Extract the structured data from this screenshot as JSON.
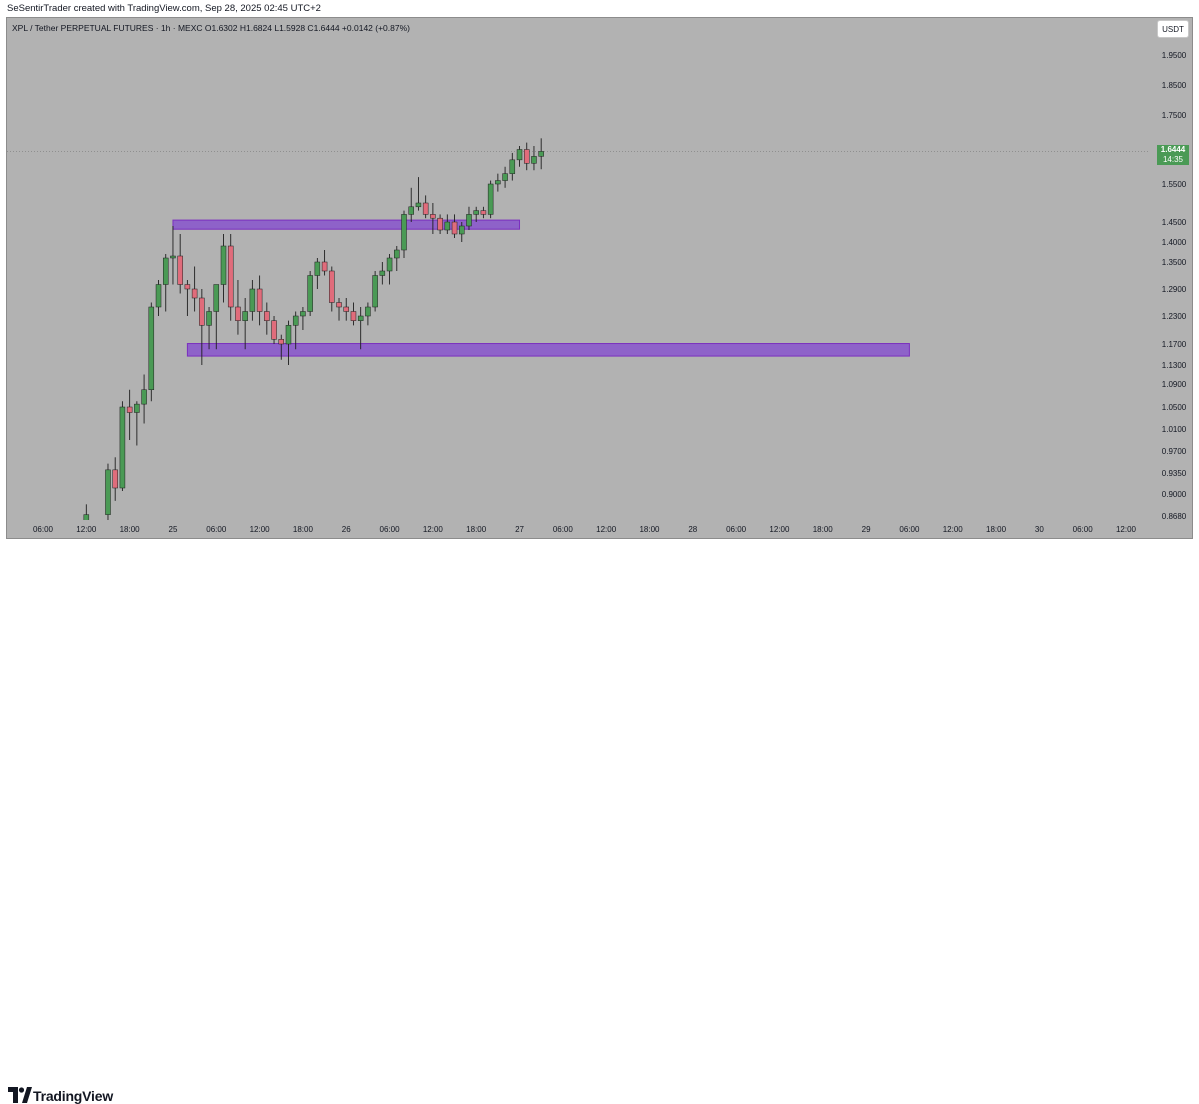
{
  "header": {
    "credit": "SeSentirTrader created with TradingView.com, Sep 28, 2025 02:45 UTC+2",
    "legend": "XPL / Tether PERPETUAL FUTURES · 1h · MEXC  O1.6302  H1.6824  L1.5928  C1.6444  +0.0142 (+0.87%)",
    "currency": "USDT"
  },
  "last_price": {
    "price": "1.6444",
    "countdown": "14:35"
  },
  "brand": {
    "name": "TradingView"
  },
  "colors": {
    "up": "#4a9a55",
    "down": "#e06c7b",
    "zone_fill": "#8e62c9",
    "zone_border": "#7b2fbf",
    "background": "#b2b2b2"
  },
  "chart_data": {
    "type": "candlestick",
    "title": "XPL / Tether PERPETUAL FUTURES · 1h · MEXC",
    "ylim": [
      0.868,
      1.99
    ],
    "y_ticks": [
      "1.9500",
      "1.8500",
      "1.7500",
      "1.5500",
      "1.4500",
      "1.4000",
      "1.3500",
      "1.2900",
      "1.2300",
      "1.1700",
      "1.1300",
      "1.0900",
      "1.0500",
      "1.0100",
      "0.9700",
      "0.9350",
      "0.9000",
      "0.8680"
    ],
    "x_ticks": [
      "06:00",
      "12:00",
      "18:00",
      "25",
      "06:00",
      "12:00",
      "18:00",
      "26",
      "06:00",
      "12:00",
      "18:00",
      "27",
      "06:00",
      "12:00",
      "18:00",
      "28",
      "06:00",
      "12:00",
      "18:00",
      "29",
      "06:00",
      "12:00",
      "18:00",
      "30",
      "06:00",
      "12:00"
    ],
    "candles": [
      {
        "time": "Sep 25 12:00",
        "o": 0.83,
        "h": 0.885,
        "l": 0.83,
        "c": 0.87
      },
      {
        "time": "Sep 25 15:00",
        "o": 0.87,
        "h": 0.95,
        "l": 0.86,
        "c": 0.94
      },
      {
        "time": "Sep 25 16:00",
        "o": 0.94,
        "h": 0.96,
        "l": 0.89,
        "c": 0.91
      },
      {
        "time": "Sep 25 17:00",
        "o": 0.91,
        "h": 1.06,
        "l": 0.905,
        "c": 1.05
      },
      {
        "time": "Sep 25 18:00",
        "o": 1.05,
        "h": 1.08,
        "l": 0.99,
        "c": 1.04
      },
      {
        "time": "Sep 25 19:00",
        "o": 1.04,
        "h": 1.06,
        "l": 0.98,
        "c": 1.055
      },
      {
        "time": "Sep 25 20:00",
        "o": 1.055,
        "h": 1.11,
        "l": 1.02,
        "c": 1.08
      },
      {
        "time": "Sep 25 21:00",
        "o": 1.08,
        "h": 1.26,
        "l": 1.06,
        "c": 1.25
      },
      {
        "time": "Sep 25 22:00",
        "o": 1.25,
        "h": 1.31,
        "l": 1.23,
        "c": 1.3
      },
      {
        "time": "Sep 25 23:00",
        "o": 1.3,
        "h": 1.37,
        "l": 1.24,
        "c": 1.36
      },
      {
        "time": "Sep 26 00:00",
        "o": 1.36,
        "h": 1.44,
        "l": 1.3,
        "c": 1.365
      },
      {
        "time": "Sep 26 01:00",
        "o": 1.365,
        "h": 1.42,
        "l": 1.28,
        "c": 1.3
      },
      {
        "time": "Sep 26 02:00",
        "o": 1.3,
        "h": 1.31,
        "l": 1.23,
        "c": 1.29
      },
      {
        "time": "Sep 26 03:00",
        "o": 1.29,
        "h": 1.34,
        "l": 1.24,
        "c": 1.27
      },
      {
        "time": "Sep 26 04:00",
        "o": 1.27,
        "h": 1.29,
        "l": 1.13,
        "c": 1.21
      },
      {
        "time": "Sep 26 05:00",
        "o": 1.21,
        "h": 1.25,
        "l": 1.16,
        "c": 1.24
      },
      {
        "time": "Sep 26 06:00",
        "o": 1.24,
        "h": 1.3,
        "l": 1.16,
        "c": 1.3
      },
      {
        "time": "Sep 26 07:00",
        "o": 1.3,
        "h": 1.42,
        "l": 1.26,
        "c": 1.39
      },
      {
        "time": "Sep 26 08:00",
        "o": 1.39,
        "h": 1.42,
        "l": 1.22,
        "c": 1.25
      },
      {
        "time": "Sep 26 09:00",
        "o": 1.25,
        "h": 1.31,
        "l": 1.19,
        "c": 1.22
      },
      {
        "time": "Sep 26 10:00",
        "o": 1.22,
        "h": 1.27,
        "l": 1.16,
        "c": 1.24
      },
      {
        "time": "Sep 26 11:00",
        "o": 1.24,
        "h": 1.31,
        "l": 1.22,
        "c": 1.29
      },
      {
        "time": "Sep 26 12:00",
        "o": 1.29,
        "h": 1.32,
        "l": 1.21,
        "c": 1.24
      },
      {
        "time": "Sep 26 13:00",
        "o": 1.24,
        "h": 1.26,
        "l": 1.19,
        "c": 1.22
      },
      {
        "time": "Sep 26 14:00",
        "o": 1.22,
        "h": 1.23,
        "l": 1.17,
        "c": 1.18
      },
      {
        "time": "Sep 26 15:00",
        "o": 1.18,
        "h": 1.19,
        "l": 1.14,
        "c": 1.17
      },
      {
        "time": "Sep 26 16:00",
        "o": 1.17,
        "h": 1.22,
        "l": 1.13,
        "c": 1.21
      },
      {
        "time": "Sep 26 17:00",
        "o": 1.21,
        "h": 1.24,
        "l": 1.16,
        "c": 1.23
      },
      {
        "time": "Sep 26 18:00",
        "o": 1.23,
        "h": 1.25,
        "l": 1.2,
        "c": 1.24
      },
      {
        "time": "Sep 26 19:00",
        "o": 1.24,
        "h": 1.33,
        "l": 1.23,
        "c": 1.32
      },
      {
        "time": "Sep 26 20:00",
        "o": 1.32,
        "h": 1.36,
        "l": 1.29,
        "c": 1.35
      },
      {
        "time": "Sep 26 21:00",
        "o": 1.35,
        "h": 1.38,
        "l": 1.32,
        "c": 1.33
      },
      {
        "time": "Sep 26 22:00",
        "o": 1.33,
        "h": 1.34,
        "l": 1.24,
        "c": 1.26
      },
      {
        "time": "Sep 26 23:00",
        "o": 1.26,
        "h": 1.27,
        "l": 1.22,
        "c": 1.25
      },
      {
        "time": "Sep 27 00:00",
        "o": 1.25,
        "h": 1.27,
        "l": 1.22,
        "c": 1.24
      },
      {
        "time": "Sep 27 01:00",
        "o": 1.24,
        "h": 1.26,
        "l": 1.21,
        "c": 1.22
      },
      {
        "time": "Sep 27 02:00",
        "o": 1.22,
        "h": 1.25,
        "l": 1.16,
        "c": 1.23
      },
      {
        "time": "Sep 27 03:00",
        "o": 1.23,
        "h": 1.26,
        "l": 1.21,
        "c": 1.25
      },
      {
        "time": "Sep 27 04:00",
        "o": 1.25,
        "h": 1.33,
        "l": 1.24,
        "c": 1.32
      },
      {
        "time": "Sep 27 05:00",
        "o": 1.32,
        "h": 1.35,
        "l": 1.3,
        "c": 1.33
      },
      {
        "time": "Sep 27 06:00",
        "o": 1.33,
        "h": 1.37,
        "l": 1.3,
        "c": 1.36
      },
      {
        "time": "Sep 27 07:00",
        "o": 1.36,
        "h": 1.39,
        "l": 1.33,
        "c": 1.38
      },
      {
        "time": "Sep 27 08:00",
        "o": 1.38,
        "h": 1.48,
        "l": 1.36,
        "c": 1.47
      },
      {
        "time": "Sep 27 09:00",
        "o": 1.47,
        "h": 1.54,
        "l": 1.45,
        "c": 1.49
      },
      {
        "time": "Sep 27 10:00",
        "o": 1.49,
        "h": 1.57,
        "l": 1.48,
        "c": 1.5
      },
      {
        "time": "Sep 27 11:00",
        "o": 1.5,
        "h": 1.52,
        "l": 1.46,
        "c": 1.47
      },
      {
        "time": "Sep 27 12:00",
        "o": 1.47,
        "h": 1.5,
        "l": 1.42,
        "c": 1.46
      },
      {
        "time": "Sep 27 13:00",
        "o": 1.46,
        "h": 1.47,
        "l": 1.42,
        "c": 1.43
      },
      {
        "time": "Sep 27 14:00",
        "o": 1.43,
        "h": 1.47,
        "l": 1.42,
        "c": 1.45
      },
      {
        "time": "Sep 27 15:00",
        "o": 1.45,
        "h": 1.47,
        "l": 1.41,
        "c": 1.42
      },
      {
        "time": "Sep 27 16:00",
        "o": 1.42,
        "h": 1.45,
        "l": 1.4,
        "c": 1.44
      },
      {
        "time": "Sep 27 17:00",
        "o": 1.44,
        "h": 1.49,
        "l": 1.43,
        "c": 1.47
      },
      {
        "time": "Sep 27 18:00",
        "o": 1.47,
        "h": 1.49,
        "l": 1.45,
        "c": 1.48
      },
      {
        "time": "Sep 27 19:00",
        "o": 1.48,
        "h": 1.49,
        "l": 1.46,
        "c": 1.47
      },
      {
        "time": "Sep 27 20:00",
        "o": 1.47,
        "h": 1.56,
        "l": 1.46,
        "c": 1.55
      },
      {
        "time": "Sep 27 21:00",
        "o": 1.55,
        "h": 1.58,
        "l": 1.53,
        "c": 1.56
      },
      {
        "time": "Sep 27 22:00",
        "o": 1.56,
        "h": 1.6,
        "l": 1.54,
        "c": 1.58
      },
      {
        "time": "Sep 27 23:00",
        "o": 1.58,
        "h": 1.64,
        "l": 1.56,
        "c": 1.62
      },
      {
        "time": "Sep 28 00:00",
        "o": 1.62,
        "h": 1.66,
        "l": 1.6,
        "c": 1.65
      },
      {
        "time": "Sep 28 01:00",
        "o": 1.65,
        "h": 1.67,
        "l": 1.59,
        "c": 1.61
      },
      {
        "time": "Sep 28 02:00",
        "o": 1.61,
        "h": 1.66,
        "l": 1.59,
        "c": 1.63
      },
      {
        "time": "Sep 28 03:00",
        "o": 1.6302,
        "h": 1.6824,
        "l": 1.5928,
        "c": 1.6444
      }
    ],
    "zones": [
      {
        "top": 1.455,
        "bottom": 1.432,
        "start": "Sep 26 00:00",
        "end": "Sep 28 00:00"
      },
      {
        "top": 1.171,
        "bottom": 1.147,
        "start": "Sep 26 02:00",
        "end": "Sep 30 06:00"
      }
    ]
  }
}
